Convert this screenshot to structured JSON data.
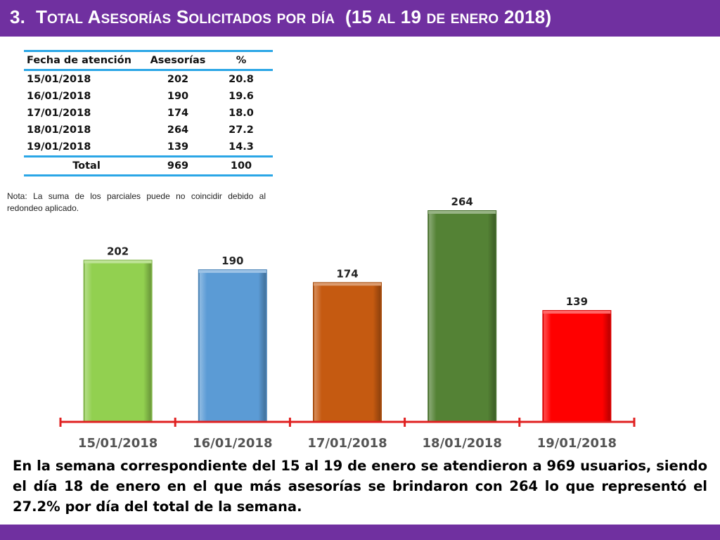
{
  "slide": {
    "title": {
      "number": "3.",
      "words": [
        {
          "initial": "T",
          "rest": "otal"
        },
        {
          "initial": "A",
          "rest": "sesorías"
        },
        {
          "initial": "S",
          "rest": "olicitados"
        },
        {
          "initial": "",
          "rest": "por"
        },
        {
          "initial": "",
          "rest": "día"
        }
      ],
      "range_open": "(15",
      "range_al": "al",
      "range_mid": "19",
      "range_de": "de",
      "range_enero": "enero",
      "range_close": "2018)"
    },
    "colors": {
      "purple": "#7030a0",
      "table_rule": "#2aa6e6",
      "axis": "#e02020"
    }
  },
  "table": {
    "headers": [
      "Fecha de atención",
      "Asesorías",
      "%"
    ],
    "rows": [
      {
        "fecha": "15/01/2018",
        "asesorias": "202",
        "pct": "20.8"
      },
      {
        "fecha": "16/01/2018",
        "asesorias": "190",
        "pct": "19.6"
      },
      {
        "fecha": "17/01/2018",
        "asesorias": "174",
        "pct": "18.0"
      },
      {
        "fecha": "18/01/2018",
        "asesorias": "264",
        "pct": "27.2"
      },
      {
        "fecha": "19/01/2018",
        "asesorias": "139",
        "pct": "14.3"
      }
    ],
    "total": {
      "label": "Total",
      "asesorias": "969",
      "pct": "100"
    }
  },
  "note": "Nota: La suma de los parciales puede no coincidir debido al redondeo aplicado.",
  "chart_data": {
    "type": "bar",
    "categories": [
      "15/01/2018",
      "16/01/2018",
      "17/01/2018",
      "18/01/2018",
      "19/01/2018"
    ],
    "values": [
      202,
      190,
      174,
      264,
      139
    ],
    "bar_colors": [
      "#92d050",
      "#5b9bd5",
      "#c55a11",
      "#548235",
      "#ff0000"
    ],
    "ylim": [
      0,
      264
    ],
    "grid": false,
    "legend": "none"
  },
  "summary": "En la semana correspondiente del 15 al 19 de enero se atendieron a 969 usuarios, siendo el día 18 de enero en el que más asesorías se brindaron con 264 lo que representó el 27.2% por día del total de la semana."
}
